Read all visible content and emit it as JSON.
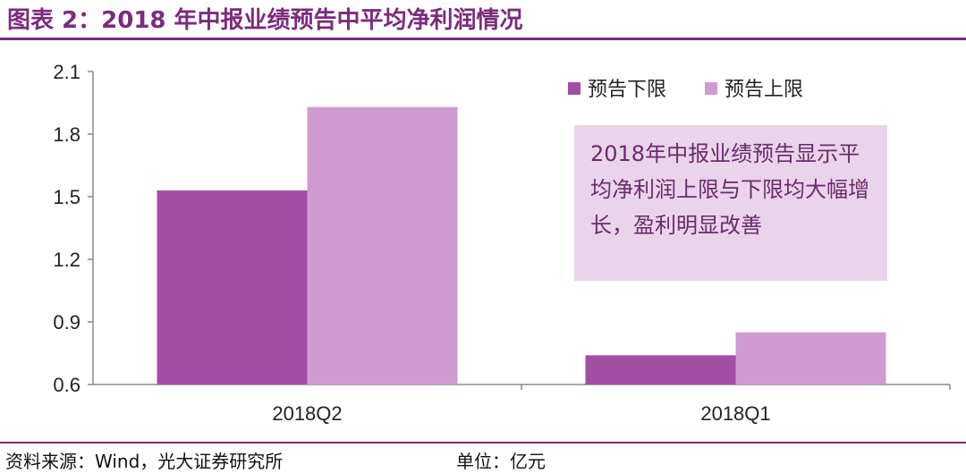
{
  "title": "图表 2：2018 年中报业绩预告中平均净利润情况",
  "footer": {
    "source": "资料来源：Wind，光大证券研究所",
    "unit": "单位：亿元"
  },
  "annotation": "2018年中报业绩预告显示平均净利润上限与下限均大幅增长，盈利明显改善",
  "colors": {
    "accent": "#7b2b7d",
    "lower": "#a24ea5",
    "upper": "#cf9acf"
  },
  "chart_data": {
    "type": "bar",
    "categories": [
      "2018Q2",
      "2018Q1"
    ],
    "series": [
      {
        "name": "预告下限",
        "values": [
          1.53,
          0.74
        ]
      },
      {
        "name": "预告上限",
        "values": [
          1.93,
          0.85
        ]
      }
    ],
    "ylim": [
      0.6,
      2.1
    ],
    "yticks": [
      "2.1",
      "1.8",
      "1.5",
      "1.2",
      "0.9",
      "0.6"
    ],
    "grid": false,
    "legend": "top-right"
  }
}
